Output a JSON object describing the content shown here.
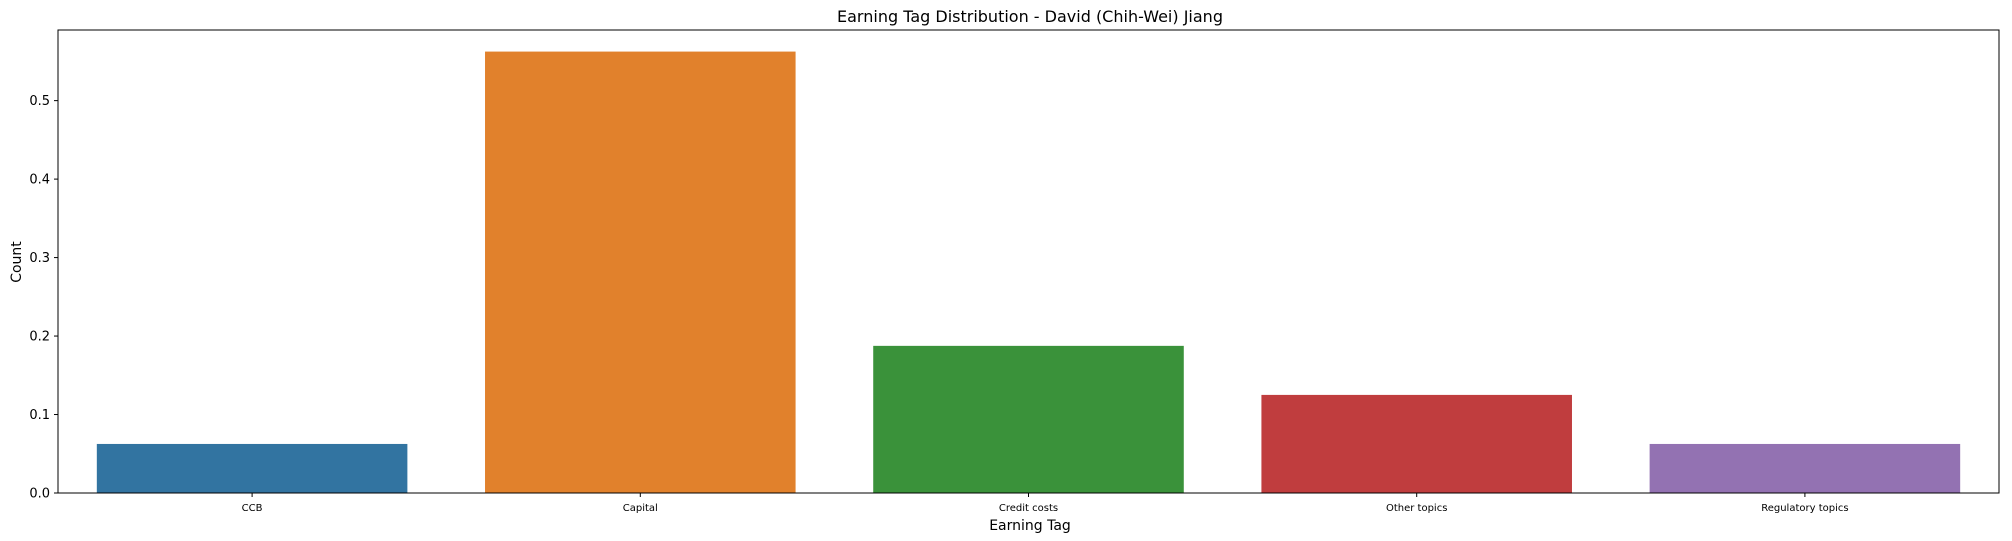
{
  "chart_data": {
    "type": "bar",
    "title": "Earning Tag Distribution - David (Chih-Wei) Jiang",
    "xlabel": "Earning Tag",
    "ylabel": "Count",
    "categories": [
      "CCB",
      "Capital",
      "Credit costs",
      "Other topics",
      "Regulatory topics"
    ],
    "values": [
      0.0625,
      0.5625,
      0.1875,
      0.125,
      0.0625
    ],
    "colors": [
      "#3274a1",
      "#e1812c",
      "#3a923a",
      "#c03d3e",
      "#9372b2"
    ],
    "ylim": [
      0,
      0.59
    ],
    "yticks": [
      "0.0",
      "0.1",
      "0.2",
      "0.3",
      "0.4",
      "0.5"
    ],
    "grid": false
  }
}
